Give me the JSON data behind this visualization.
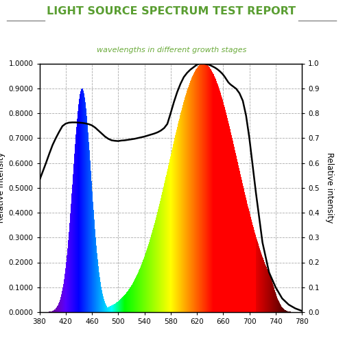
{
  "title": "LIGHT SOURCE SPECTRUM TEST REPORT",
  "subtitle": "wavelengths in different growth stages",
  "title_color": "#5a9e32",
  "subtitle_color": "#6aaa3a",
  "bg_color": "#ffffff",
  "ylabel_left": "Relative intensity",
  "ylabel_right": "Relative intensity",
  "xlim": [
    380,
    780
  ],
  "ylim": [
    0.0,
    1.0
  ],
  "xticks": [
    380,
    420,
    460,
    500,
    540,
    580,
    620,
    660,
    700,
    740,
    780
  ],
  "yticks": [
    0.0,
    0.1,
    0.2,
    0.3,
    0.4,
    0.5,
    0.6,
    0.7,
    0.8,
    0.9,
    1.0
  ],
  "ytick_labels_left": [
    "0.0000",
    "0.1000",
    "0.2000",
    "0.3000",
    "0.4000",
    "0.5000",
    "0.6000",
    "0.7000",
    "0.8000",
    "0.9000",
    "1.0000"
  ],
  "ytick_labels_right": [
    "0.0",
    "0.1",
    "0.2",
    "0.3",
    "0.4",
    "0.5",
    "0.6",
    "0.7",
    "0.8",
    "0.9",
    "1.0"
  ],
  "black_curve_x": [
    380,
    385,
    390,
    395,
    400,
    405,
    410,
    415,
    420,
    425,
    430,
    435,
    440,
    445,
    450,
    455,
    460,
    465,
    470,
    475,
    480,
    485,
    490,
    495,
    500,
    505,
    510,
    515,
    520,
    525,
    530,
    535,
    540,
    545,
    550,
    555,
    560,
    565,
    570,
    575,
    580,
    585,
    590,
    595,
    600,
    605,
    610,
    615,
    620,
    623,
    626,
    629,
    632,
    635,
    638,
    641,
    644,
    647,
    650,
    653,
    656,
    659,
    662,
    665,
    668,
    671,
    675,
    680,
    685,
    690,
    695,
    700,
    710,
    720,
    730,
    740,
    750,
    760,
    770,
    780
  ],
  "black_curve_y": [
    0.53,
    0.565,
    0.6,
    0.637,
    0.672,
    0.7,
    0.725,
    0.748,
    0.758,
    0.762,
    0.763,
    0.763,
    0.762,
    0.761,
    0.759,
    0.756,
    0.751,
    0.742,
    0.73,
    0.718,
    0.706,
    0.697,
    0.691,
    0.689,
    0.688,
    0.69,
    0.691,
    0.693,
    0.695,
    0.697,
    0.7,
    0.703,
    0.706,
    0.71,
    0.714,
    0.718,
    0.723,
    0.73,
    0.74,
    0.757,
    0.8,
    0.845,
    0.885,
    0.918,
    0.945,
    0.962,
    0.975,
    0.985,
    0.995,
    0.998,
    1.0,
    1.0,
    0.999,
    0.997,
    0.995,
    0.992,
    0.988,
    0.984,
    0.979,
    0.973,
    0.966,
    0.958,
    0.948,
    0.936,
    0.924,
    0.916,
    0.908,
    0.898,
    0.88,
    0.85,
    0.79,
    0.7,
    0.48,
    0.28,
    0.16,
    0.1,
    0.055,
    0.03,
    0.015,
    0.005
  ]
}
